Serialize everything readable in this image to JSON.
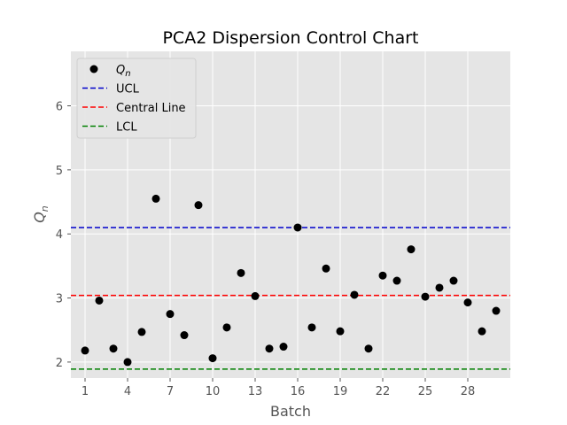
{
  "chart_data": {
    "type": "scatter",
    "title": "PCA2 Dispersion Control Chart",
    "xlabel": "Batch",
    "ylabel": "Q",
    "ylabel_sub": "n",
    "xlim": [
      0.0,
      31.0
    ],
    "ylim": [
      1.75,
      6.85
    ],
    "x_ticks": [
      1,
      4,
      7,
      10,
      13,
      16,
      19,
      22,
      25,
      28
    ],
    "y_ticks": [
      2,
      3,
      4,
      5,
      6
    ],
    "grid": true,
    "legend_position": "top-left",
    "series": [
      {
        "name": "Q",
        "name_sub": "n",
        "kind": "points",
        "color": "#000000",
        "x": [
          1,
          2,
          3,
          4,
          5,
          6,
          7,
          8,
          9,
          10,
          11,
          12,
          13,
          14,
          15,
          16,
          17,
          18,
          19,
          20,
          21,
          22,
          23,
          24,
          25,
          26,
          27,
          28,
          29,
          30
        ],
        "y": [
          2.18,
          2.96,
          2.21,
          2.0,
          2.47,
          4.55,
          2.75,
          2.42,
          4.45,
          2.06,
          2.54,
          3.39,
          3.03,
          2.21,
          2.24,
          4.1,
          2.54,
          3.46,
          2.48,
          3.05,
          2.21,
          3.35,
          3.27,
          3.76,
          3.02,
          3.16,
          3.27,
          2.93,
          2.48,
          2.8
        ]
      },
      {
        "name": "UCL",
        "kind": "hline",
        "value": 4.1,
        "color": "#0000cc",
        "dash": true
      },
      {
        "name": "Central Line",
        "kind": "hline",
        "value": 3.04,
        "color": "#ff0000",
        "dash": true
      },
      {
        "name": "LCL",
        "kind": "hline",
        "value": 1.89,
        "color": "#008000",
        "dash": true
      }
    ],
    "colors": {
      "plot_background": "#e5e5e5",
      "grid": "#ffffff"
    }
  }
}
